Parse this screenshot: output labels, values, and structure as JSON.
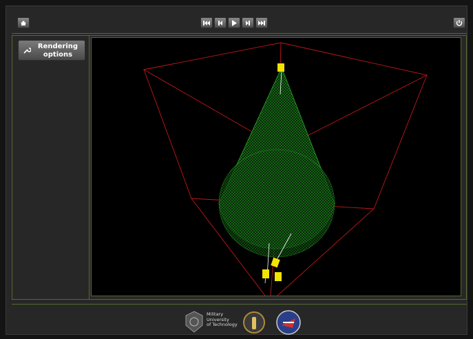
{
  "sidebar": {
    "rendering_button": "Rendering options"
  },
  "footer": {
    "logo_lines": [
      "Military",
      "University",
      "of Technology"
    ]
  }
}
